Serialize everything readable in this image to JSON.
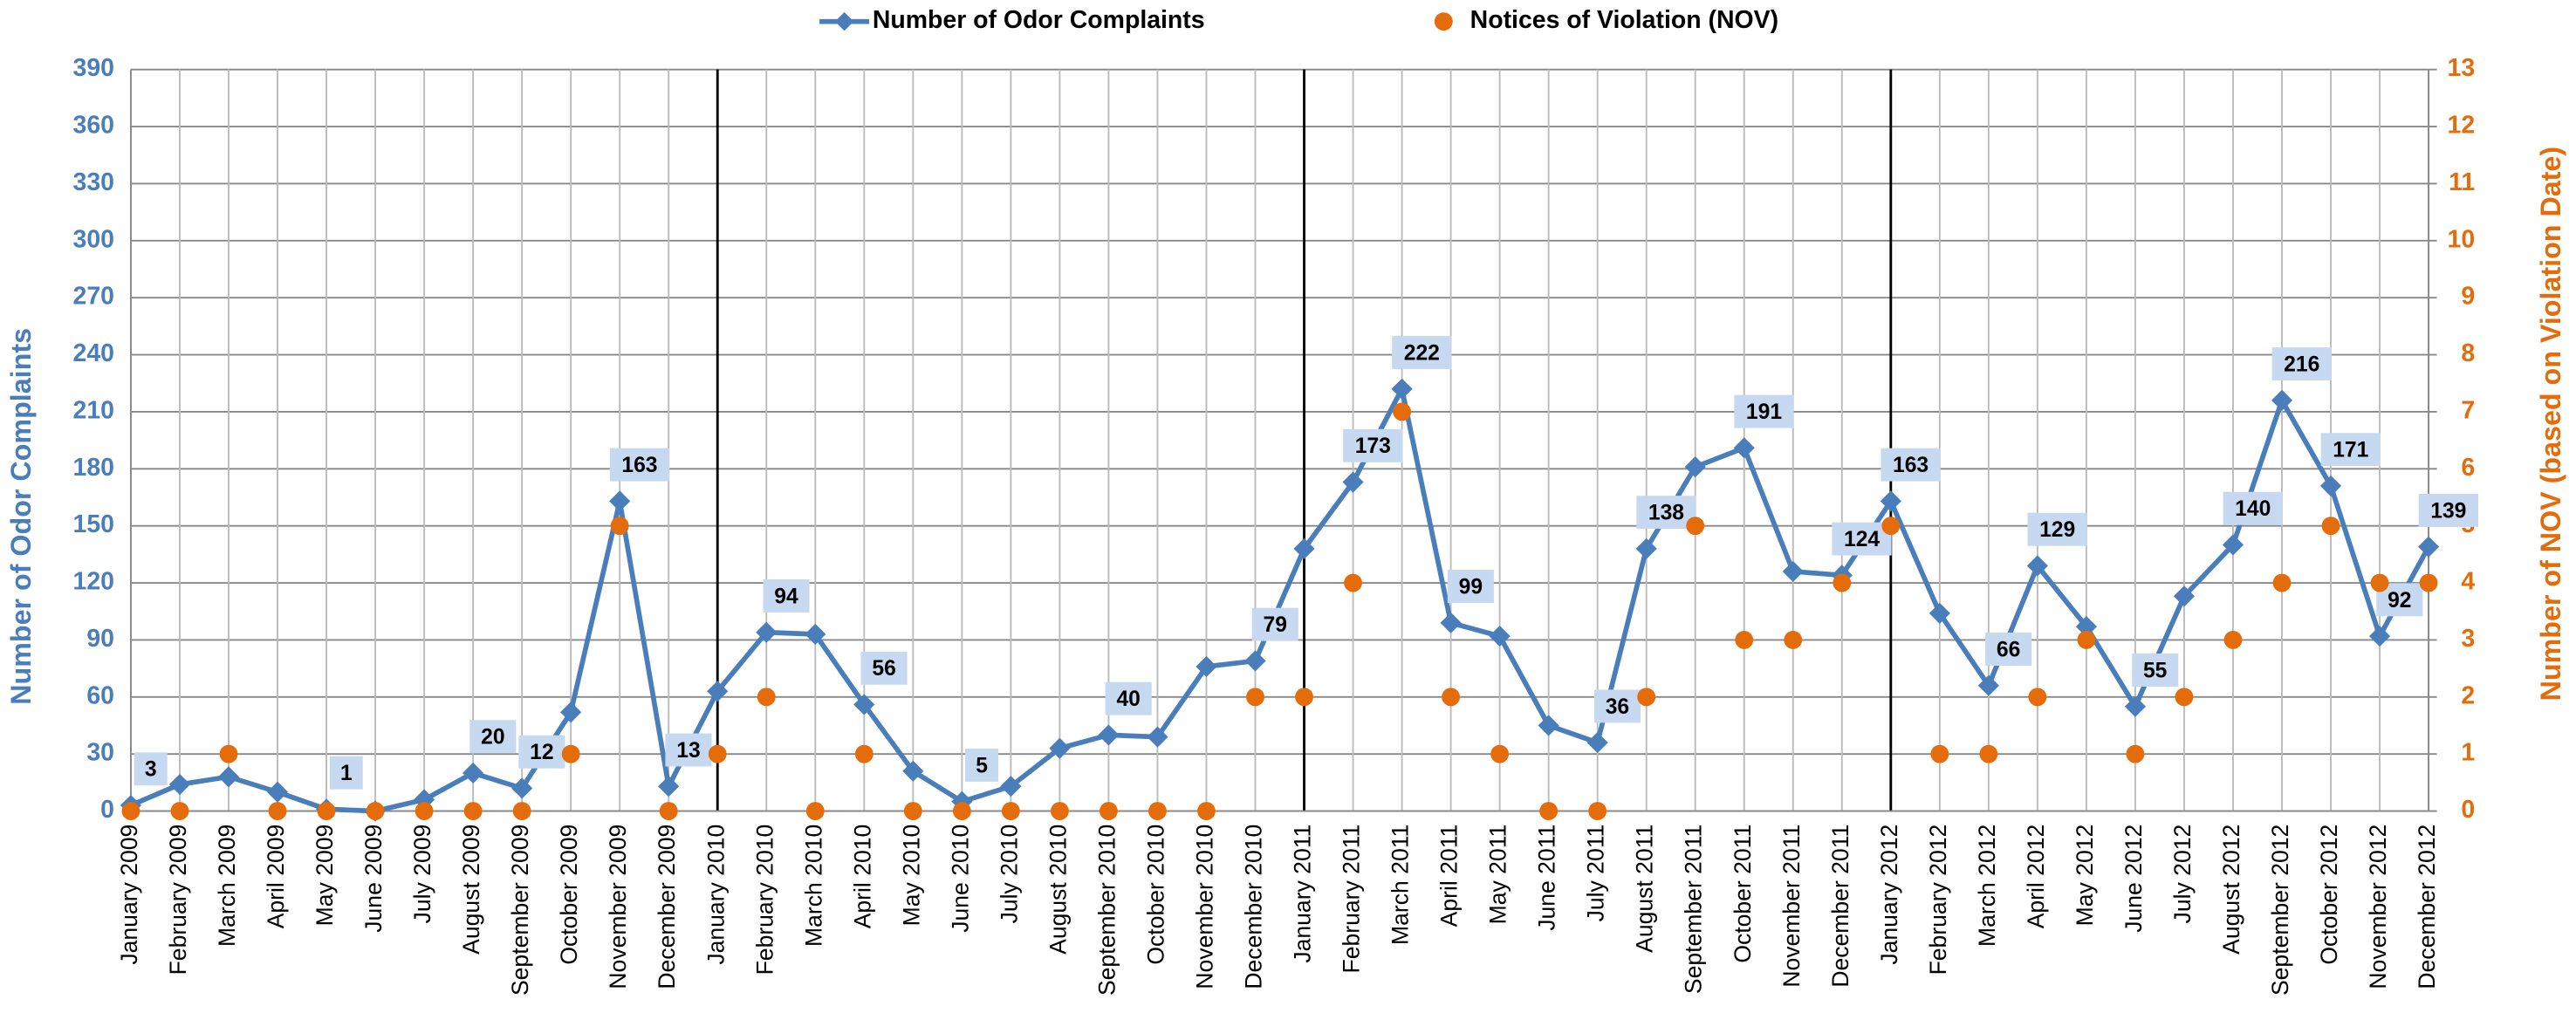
{
  "chart_data": {
    "type": "line",
    "categories": [
      "January 2009",
      "February 2009",
      "March 2009",
      "April 2009",
      "May 2009",
      "June 2009",
      "July 2009",
      "August 2009",
      "September 2009",
      "October 2009",
      "November 2009",
      "December 2009",
      "January 2010",
      "February 2010",
      "March 2010",
      "April 2010",
      "May 2010",
      "June 2010",
      "July 2010",
      "August 2010",
      "September 2010",
      "October 2010",
      "November 2010",
      "December 2010",
      "January 2011",
      "February 2011",
      "March 2011",
      "April 2011",
      "May 2011",
      "June 2011",
      "July 2011",
      "August 2011",
      "September 2011",
      "October 2011",
      "November 2011",
      "December 2011",
      "January 2012",
      "February 2012",
      "March 2012",
      "April 2012",
      "May 2012",
      "June 2012",
      "July 2012",
      "August 2012",
      "September 2012",
      "October 2012",
      "November 2012",
      "December 2012"
    ],
    "series": [
      {
        "name": "Number of Odor Complaints",
        "color": "#4a7ebb",
        "type": "line",
        "values": [
          3,
          14,
          18,
          10,
          1,
          0,
          6,
          20,
          12,
          52,
          163,
          13,
          63,
          94,
          93,
          56,
          21,
          5,
          13,
          33,
          40,
          39,
          76,
          79,
          138,
          173,
          222,
          99,
          92,
          45,
          36,
          138,
          181,
          191,
          126,
          124,
          163,
          104,
          66,
          129,
          97,
          55,
          113,
          140,
          216,
          171,
          92,
          139
        ],
        "value_labels": [
          "3",
          null,
          null,
          null,
          "1",
          null,
          null,
          "20",
          "12",
          null,
          "163",
          "13",
          null,
          "94",
          null,
          "56",
          null,
          "5",
          null,
          null,
          "40",
          null,
          null,
          "79",
          null,
          "173",
          "222",
          "99",
          null,
          null,
          "36",
          "138",
          null,
          "191",
          null,
          "124",
          "163",
          null,
          "66",
          "129",
          null,
          "55",
          null,
          "140",
          "216",
          "171",
          "92",
          "139"
        ]
      },
      {
        "name": "Notices of Violation (NOV)",
        "color": "#e46c0a",
        "type": "scatter",
        "axis": "y2",
        "values": [
          0,
          0,
          1,
          0,
          0,
          0,
          0,
          0,
          0,
          1,
          5,
          0,
          1,
          2,
          0,
          1,
          0,
          0,
          0,
          0,
          0,
          0,
          0,
          2,
          2,
          4,
          7,
          2,
          1,
          0,
          0,
          2,
          5,
          3,
          3,
          4,
          5,
          1,
          1,
          2,
          3,
          1,
          2,
          3,
          4,
          5,
          4,
          4
        ]
      }
    ],
    "ylabel": "Number of Odor Complaints",
    "y2label": "Number of NOV (based on Violation Date)",
    "ylim": [
      0,
      390
    ],
    "yticks": [
      0,
      30,
      60,
      90,
      120,
      150,
      180,
      210,
      240,
      270,
      300,
      330,
      360,
      390
    ],
    "y2lim": [
      0,
      13
    ],
    "y2ticks": [
      0,
      1,
      2,
      3,
      4,
      5,
      6,
      7,
      8,
      9,
      10,
      11,
      12,
      13
    ],
    "grid": true,
    "legend": "top"
  }
}
